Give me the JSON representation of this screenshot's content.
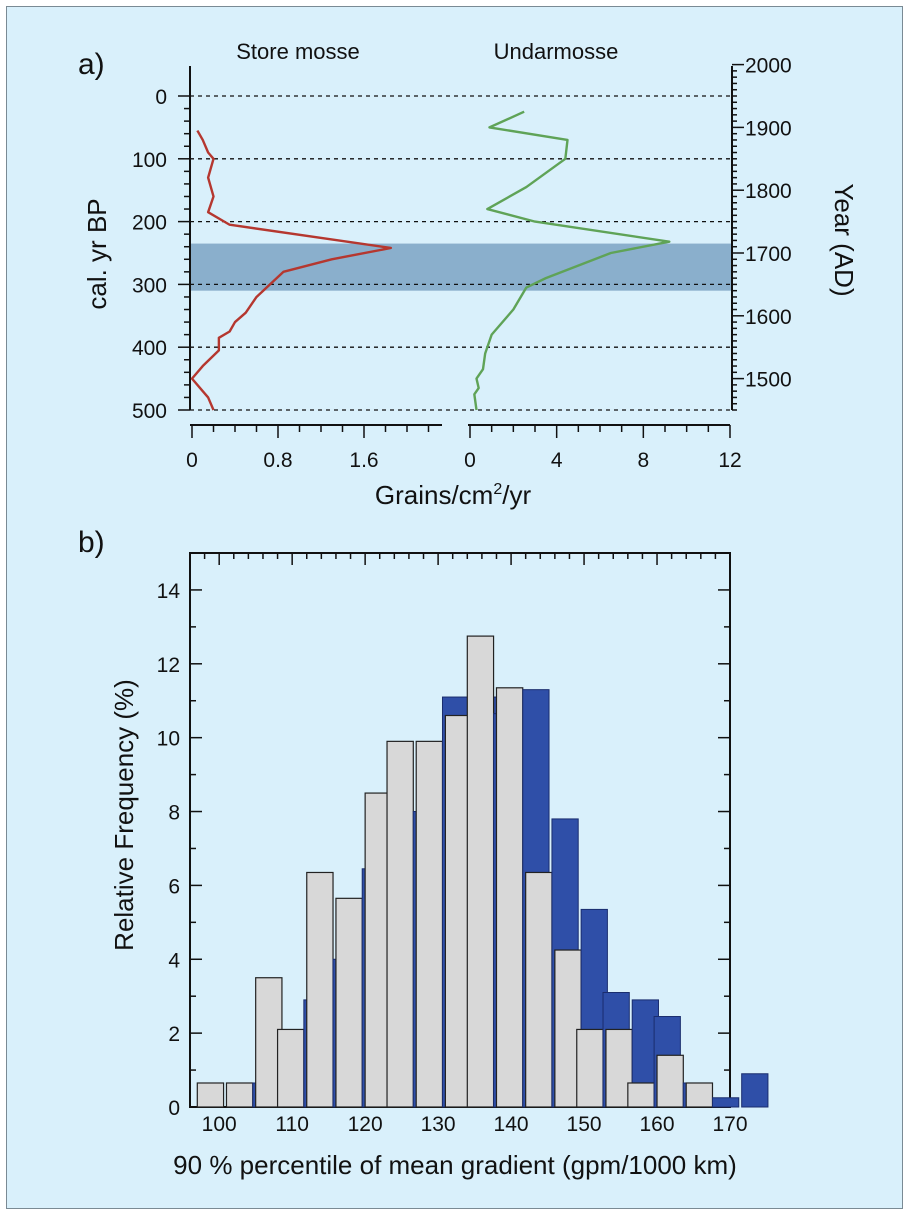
{
  "chart_data": [
    {
      "type": "line",
      "panel_label": "a)",
      "xlabel_parts": [
        "Grains/cm",
        "2",
        "/yr"
      ],
      "ylabel": "cal. yr BP",
      "y2label": "Year (AD)",
      "ylim": [
        500,
        0
      ],
      "y_ticks": [
        0,
        100,
        200,
        300,
        400,
        500
      ],
      "y2_ticks": [
        2000,
        1900,
        1800,
        1700,
        1600,
        1500
      ],
      "dashed_gridlines_y": [
        0,
        100,
        200,
        300,
        400,
        500
      ],
      "highlight_band_y": [
        235,
        310
      ],
      "highlight_color": "#86abc9",
      "series": [
        {
          "name": "Store mosse",
          "color": "#b5372f",
          "xlim": [
            0,
            2.4
          ],
          "x_ticks": [
            0,
            0.8,
            1.6
          ],
          "x_tick_labels": [
            "0",
            "0.8",
            "1.6"
          ],
          "points": [
            [
              0.05,
              55
            ],
            [
              0.1,
              70
            ],
            [
              0.15,
              90
            ],
            [
              0.2,
              100
            ],
            [
              0.15,
              130
            ],
            [
              0.2,
              160
            ],
            [
              0.15,
              185
            ],
            [
              0.3,
              200
            ],
            [
              0.35,
              205
            ],
            [
              1.85,
              242
            ],
            [
              1.3,
              260
            ],
            [
              0.85,
              280
            ],
            [
              0.6,
              320
            ],
            [
              0.5,
              345
            ],
            [
              0.4,
              360
            ],
            [
              0.35,
              375
            ],
            [
              0.25,
              385
            ],
            [
              0.25,
              405
            ],
            [
              0.1,
              430
            ],
            [
              0.0,
              450
            ],
            [
              0.1,
              470
            ],
            [
              0.15,
              480
            ],
            [
              0.2,
              500
            ]
          ]
        },
        {
          "name": "Undarmosse",
          "color": "#5fa357",
          "xlim": [
            0,
            12
          ],
          "x_ticks": [
            0,
            4,
            8,
            12
          ],
          "x_tick_labels": [
            "0",
            "4",
            "8",
            "12"
          ],
          "points": [
            [
              2.5,
              25
            ],
            [
              0.9,
              50
            ],
            [
              4.5,
              70
            ],
            [
              4.4,
              100
            ],
            [
              2.6,
              145
            ],
            [
              0.8,
              180
            ],
            [
              3.0,
              200
            ],
            [
              9.2,
              232
            ],
            [
              6.5,
              250
            ],
            [
              3.5,
              290
            ],
            [
              2.6,
              305
            ],
            [
              2.0,
              340
            ],
            [
              1.0,
              380
            ],
            [
              0.7,
              410
            ],
            [
              0.6,
              435
            ],
            [
              0.3,
              450
            ],
            [
              0.4,
              465
            ],
            [
              0.2,
              475
            ],
            [
              0.3,
              500
            ]
          ]
        }
      ]
    },
    {
      "type": "bar",
      "panel_label": "b)",
      "xlabel": "90 % percentile of mean gradient (gpm/1000 km)",
      "ylabel": "Relative Frequency (%)",
      "xlim": [
        96,
        170
      ],
      "ylim": [
        0,
        15
      ],
      "x_ticks": [
        100,
        110,
        120,
        130,
        140,
        150,
        160,
        170
      ],
      "y_ticks": [
        0,
        2,
        4,
        6,
        8,
        10,
        12,
        14
      ],
      "bin_edges": [
        97,
        101,
        105,
        108,
        112,
        116,
        120,
        123,
        127,
        131,
        134,
        138,
        142,
        146,
        149,
        153,
        156,
        160,
        164,
        168
      ],
      "bin_width": 3.6,
      "series": [
        {
          "color": "#d8d8d8",
          "values": [
            0.65,
            0.65,
            3.5,
            2.1,
            6.35,
            5.65,
            8.5,
            9.9,
            9.9,
            10.6,
            12.75,
            11.35,
            6.35,
            4.25,
            2.1,
            2.1,
            0.65,
            1.4,
            0.65,
            0
          ]
        },
        {
          "color": "#2f4fa8",
          "values": [
            0,
            0.65,
            2.0,
            2.9,
            4.0,
            6.45,
            8.0,
            8.0,
            11.1,
            11.1,
            10.65,
            11.3,
            7.8,
            5.35,
            3.1,
            2.9,
            2.45,
            0.65,
            0.25,
            0.9
          ]
        }
      ]
    }
  ]
}
